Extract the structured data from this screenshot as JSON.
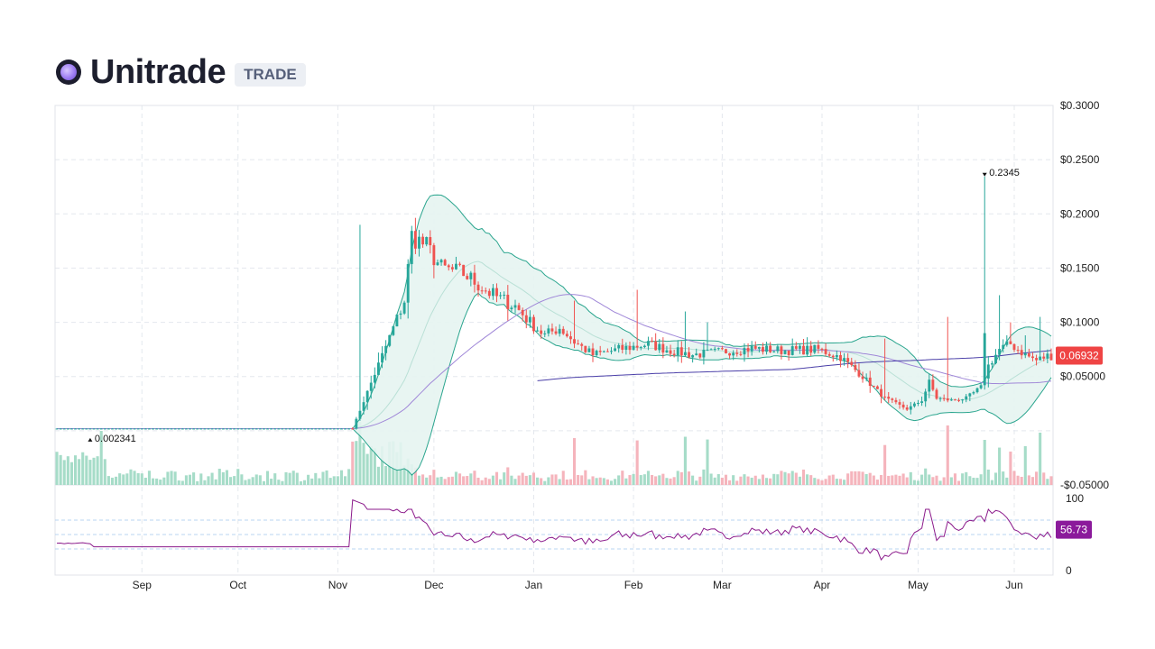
{
  "header": {
    "title": "Unitrade",
    "badge": "TRADE",
    "logo_icon": "unitrade-logo-icon"
  },
  "chart_data": {
    "type": "candlestick",
    "price_axis": {
      "ticks": [
        0.3,
        0.25,
        0.2,
        0.15,
        0.1,
        0.05,
        -0.05
      ],
      "tick_labels": [
        "$0.3000",
        "$0.2500",
        "$0.2000",
        "$0.1500",
        "$0.1000",
        "$0.05000",
        "-$0.05000"
      ],
      "range": [
        -0.05,
        0.3
      ]
    },
    "time_axis": {
      "labels": [
        "Sep",
        "Oct",
        "Nov",
        "Dec",
        "Jan",
        "Feb",
        "Mar",
        "Apr",
        "May",
        "Jun"
      ]
    },
    "oscillator_axis": {
      "ticks": [
        100,
        0
      ],
      "tick_labels": [
        "100",
        "0"
      ],
      "range": [
        0,
        100
      ],
      "guide_levels": [
        70,
        50,
        30
      ]
    },
    "last_price_label": "0.06932",
    "last_price": 0.06932,
    "oscillator_value_label": "56.73",
    "oscillator_value": 56.73,
    "max_marker": {
      "label": "0.2345",
      "value": 0.2345
    },
    "min_marker": {
      "label": "0.002341",
      "value": 0.002341
    },
    "series_anchors": [
      [
        0,
        0.002
      ],
      [
        80,
        0.002
      ],
      [
        94,
        0.12
      ],
      [
        96,
        0.18
      ],
      [
        100,
        0.17
      ],
      [
        104,
        0.15
      ],
      [
        110,
        0.145
      ],
      [
        114,
        0.135
      ],
      [
        118,
        0.125
      ],
      [
        124,
        0.115
      ],
      [
        128,
        0.1
      ],
      [
        132,
        0.088
      ],
      [
        136,
        0.095
      ],
      [
        140,
        0.082
      ],
      [
        145,
        0.07
      ],
      [
        152,
        0.075
      ],
      [
        160,
        0.08
      ],
      [
        166,
        0.074
      ],
      [
        172,
        0.07
      ],
      [
        180,
        0.073
      ],
      [
        188,
        0.076
      ],
      [
        196,
        0.074
      ],
      [
        206,
        0.075
      ],
      [
        212,
        0.068
      ],
      [
        218,
        0.05
      ],
      [
        224,
        0.03
      ],
      [
        230,
        0.02
      ],
      [
        234,
        0.028
      ],
      [
        236,
        0.045
      ],
      [
        238,
        0.03
      ],
      [
        242,
        0.028
      ],
      [
        246,
        0.03
      ],
      [
        250,
        0.04
      ],
      [
        252,
        0.06
      ],
      [
        255,
        0.075
      ],
      [
        258,
        0.08
      ],
      [
        262,
        0.07
      ],
      [
        265,
        0.065
      ],
      [
        268,
        0.069
      ]
    ],
    "spikes": [
      {
        "i": 82,
        "v": 0.19
      },
      {
        "i": 140,
        "v": 0.12
      },
      {
        "i": 157,
        "v": 0.13
      },
      {
        "i": 170,
        "v": 0.11
      },
      {
        "i": 176,
        "v": 0.1
      },
      {
        "i": 224,
        "v": 0.085
      },
      {
        "i": 241,
        "v": 0.105
      },
      {
        "i": 251,
        "v": 0.2345
      },
      {
        "i": 255,
        "v": 0.125
      },
      {
        "i": 258,
        "v": 0.1
      },
      {
        "i": 262,
        "v": 0.088
      },
      {
        "i": 266,
        "v": 0.105
      }
    ],
    "colors": {
      "up": "#26a69a",
      "down": "#ef5350",
      "band_fill": "#e6f4f1",
      "band_line": "#2aa58e",
      "ma_long": "#4a3fa8",
      "ma_mid": "#a088d8",
      "oscillator_line": "#8b1a8b",
      "oscillator_label_bg": "#8b1a9b",
      "price_label_bg": "#ef4444",
      "grid": "#e4e8ee",
      "guide": "#b8d4f0"
    }
  }
}
